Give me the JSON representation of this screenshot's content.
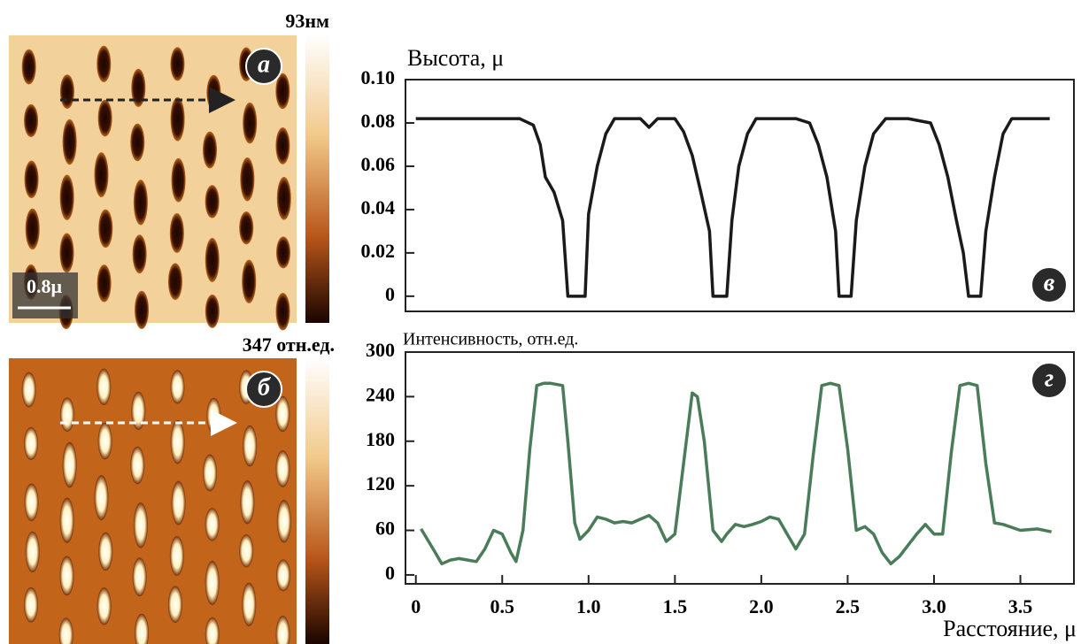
{
  "images": [
    {
      "panel": "а",
      "scale_max": "93нм",
      "scale_bar": "0.8μ"
    },
    {
      "panel": "б",
      "scale_max": "347 отн.ед."
    }
  ],
  "chart_data": [
    {
      "type": "line",
      "panel": "в",
      "y_label": "Высота, μ",
      "color": "#1a1a1a",
      "x": [
        0,
        0.3,
        0.6,
        0.68,
        0.72,
        0.75,
        0.8,
        0.85,
        0.88,
        0.98,
        1.0,
        1.05,
        1.1,
        1.15,
        1.3,
        1.35,
        1.4,
        1.5,
        1.55,
        1.6,
        1.65,
        1.7,
        1.72,
        1.8,
        1.83,
        1.87,
        1.92,
        1.97,
        2.1,
        2.2,
        2.28,
        2.33,
        2.38,
        2.43,
        2.45,
        2.52,
        2.55,
        2.6,
        2.65,
        2.72,
        2.85,
        2.98,
        3.03,
        3.08,
        3.13,
        3.17,
        3.2,
        3.27,
        3.3,
        3.35,
        3.4,
        3.45,
        3.55,
        3.67
      ],
      "values": [
        0.082,
        0.082,
        0.082,
        0.079,
        0.07,
        0.055,
        0.048,
        0.035,
        0,
        0,
        0.038,
        0.06,
        0.075,
        0.082,
        0.082,
        0.078,
        0.082,
        0.082,
        0.076,
        0.065,
        0.048,
        0.03,
        0,
        0,
        0.035,
        0.06,
        0.075,
        0.082,
        0.082,
        0.082,
        0.08,
        0.07,
        0.055,
        0.03,
        0,
        0,
        0.035,
        0.06,
        0.075,
        0.082,
        0.082,
        0.08,
        0.07,
        0.055,
        0.035,
        0.02,
        0,
        0,
        0.03,
        0.055,
        0.075,
        0.082,
        0.082,
        0.082
      ],
      "xlim": [
        -0.06,
        3.81
      ],
      "ylim": [
        -0.007,
        0.1
      ],
      "yticks": [
        0,
        0.02,
        0.04,
        0.06,
        0.08,
        {
          "value": 0.1,
          "label": "0.10"
        }
      ]
    },
    {
      "type": "line",
      "panel": "г",
      "y_label": "Интенсивность, отн.ед.",
      "x_label": "Расстояние, μ",
      "color": "#4a7c59",
      "x": [
        0.03,
        0.1,
        0.15,
        0.2,
        0.25,
        0.3,
        0.35,
        0.4,
        0.45,
        0.5,
        0.55,
        0.58,
        0.62,
        0.66,
        0.7,
        0.74,
        0.78,
        0.85,
        0.88,
        0.92,
        0.95,
        1.0,
        1.05,
        1.1,
        1.15,
        1.2,
        1.25,
        1.3,
        1.35,
        1.4,
        1.45,
        1.5,
        1.55,
        1.6,
        1.63,
        1.67,
        1.72,
        1.77,
        1.8,
        1.85,
        1.9,
        1.95,
        2.0,
        2.05,
        2.1,
        2.15,
        2.2,
        2.25,
        2.3,
        2.35,
        2.4,
        2.45,
        2.5,
        2.55,
        2.6,
        2.65,
        2.7,
        2.75,
        2.8,
        2.85,
        2.9,
        2.95,
        3.0,
        3.05,
        3.1,
        3.15,
        3.2,
        3.25,
        3.3,
        3.35,
        3.4,
        3.5,
        3.6,
        3.68
      ],
      "values": [
        62,
        35,
        15,
        20,
        22,
        20,
        18,
        35,
        60,
        55,
        30,
        18,
        60,
        170,
        255,
        258,
        258,
        255,
        180,
        70,
        48,
        60,
        78,
        75,
        70,
        72,
        70,
        75,
        80,
        70,
        45,
        55,
        150,
        245,
        240,
        180,
        60,
        45,
        55,
        68,
        65,
        68,
        72,
        78,
        75,
        55,
        35,
        55,
        160,
        255,
        258,
        255,
        170,
        60,
        65,
        55,
        30,
        15,
        25,
        40,
        55,
        68,
        55,
        55,
        165,
        255,
        258,
        255,
        150,
        70,
        68,
        60,
        62,
        58
      ],
      "xlim": [
        -0.06,
        3.81
      ],
      "ylim": [
        -12,
        300
      ],
      "xticks": [
        0,
        0.5,
        {
          "value": 1,
          "label": "1.0"
        },
        1.5,
        {
          "value": 2,
          "label": "2.0"
        },
        2.5,
        {
          "value": 3,
          "label": "3.0"
        },
        3.5
      ],
      "yticks": [
        0,
        60,
        120,
        180,
        240,
        300
      ]
    }
  ]
}
